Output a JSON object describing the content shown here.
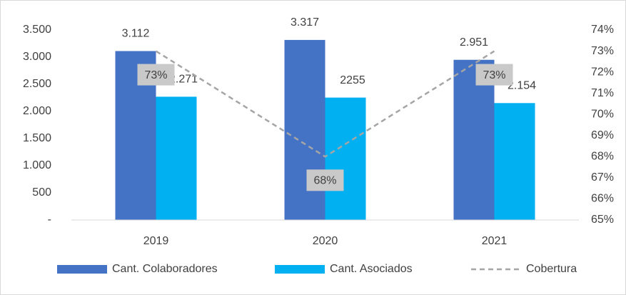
{
  "chart_data": {
    "type": "bar_line",
    "categories": [
      "2019",
      "2020",
      "2021"
    ],
    "series": [
      {
        "name": "Cant. Colaboradores",
        "color": "#4472c4",
        "values": [
          3112,
          3317,
          2951
        ],
        "value_labels": [
          "3.112",
          "3.317",
          "2.951"
        ]
      },
      {
        "name": "Cant. Asociados",
        "color": "#00b0f0",
        "values": [
          2271,
          2255,
          2154
        ],
        "value_labels": [
          "2.271",
          "2255",
          "2.154"
        ]
      },
      {
        "name": "Cobertura",
        "color": "#a5a5a5",
        "axis": "y2",
        "values": [
          73,
          68,
          73
        ],
        "value_labels": [
          "73%",
          "68%",
          "73%"
        ]
      }
    ],
    "ylim": [
      0,
      3500
    ],
    "yticks": [
      {
        "value": 0,
        "label": "-"
      },
      500,
      {
        "value": 1000,
        "label": "1.000"
      },
      {
        "value": 1500,
        "label": "1.500"
      },
      {
        "value": 2000,
        "label": "2.000"
      },
      {
        "value": 2500,
        "label": "2.500"
      },
      {
        "value": 3000,
        "label": "3.000"
      },
      {
        "value": 3500,
        "label": "3.500"
      }
    ],
    "y2lim": [
      65,
      74
    ],
    "y2ticks": [
      {
        "value": 65,
        "label": "65%"
      },
      {
        "value": 66,
        "label": "66%"
      },
      {
        "value": 67,
        "label": "67%"
      },
      {
        "value": 68,
        "label": "68%"
      },
      {
        "value": 69,
        "label": "69%"
      },
      {
        "value": 70,
        "label": "70%"
      },
      {
        "value": 71,
        "label": "71%"
      },
      {
        "value": 72,
        "label": "72%"
      },
      {
        "value": 73,
        "label": "73%"
      },
      {
        "value": 74,
        "label": "74%"
      }
    ],
    "legend": "bottom"
  }
}
